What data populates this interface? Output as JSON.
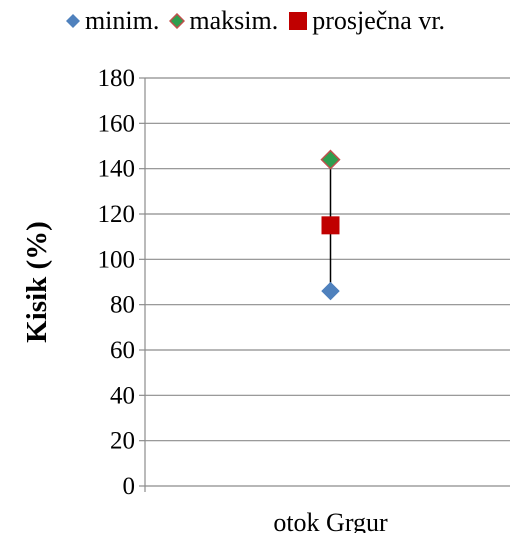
{
  "chart_data": {
    "type": "scatter",
    "title": "",
    "xlabel": "",
    "ylabel": "Kisik (%)",
    "categories": [
      "otok Grgur"
    ],
    "ylim": [
      0,
      180
    ],
    "ytick_step": 20,
    "yticks": [
      "0",
      "20",
      "40",
      "60",
      "80",
      "100",
      "120",
      "140",
      "160",
      "180"
    ],
    "grid": true,
    "legend_position": "top",
    "series": [
      {
        "name": "minim.",
        "values": [
          86
        ],
        "marker": "diamond",
        "color": "#4f81bd"
      },
      {
        "name": "maksim.",
        "values": [
          144
        ],
        "marker": "diamond",
        "color": "#2e9e4f",
        "edge_color": "#c0504d"
      },
      {
        "name": "prosječna vr.",
        "values": [
          115
        ],
        "marker": "square",
        "color": "#c00000"
      }
    ],
    "range_line": {
      "from": "minim.",
      "to": "maksim.",
      "color": "#000000"
    }
  }
}
